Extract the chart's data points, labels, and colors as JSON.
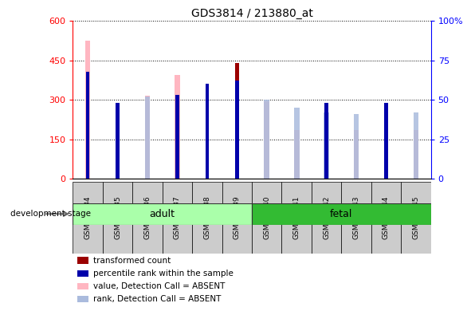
{
  "title": "GDS3814 / 213880_at",
  "samples": [
    "GSM440234",
    "GSM440235",
    "GSM440236",
    "GSM440237",
    "GSM440238",
    "GSM440239",
    "GSM440240",
    "GSM440241",
    "GSM440242",
    "GSM440243",
    "GSM440244",
    "GSM440245"
  ],
  "transformed_count": [
    0,
    270,
    0,
    0,
    315,
    440,
    0,
    0,
    195,
    0,
    195,
    0
  ],
  "percentile_rank": [
    68,
    48,
    0,
    53,
    60,
    62,
    0,
    0,
    48,
    0,
    48,
    0
  ],
  "value_absent": [
    525,
    0,
    315,
    395,
    0,
    0,
    295,
    185,
    0,
    185,
    0,
    185
  ],
  "rank_absent": [
    0,
    0,
    52,
    0,
    0,
    0,
    50,
    45,
    42,
    41,
    0,
    42
  ],
  "ylim_left": [
    0,
    600
  ],
  "ylim_right": [
    0,
    100
  ],
  "yticks_left": [
    0,
    150,
    300,
    450,
    600
  ],
  "yticks_right": [
    0,
    25,
    50,
    75,
    100
  ],
  "color_transformed": "#9B0000",
  "color_percentile": "#0000AA",
  "color_value_absent": "#FFB6C1",
  "color_rank_absent": "#AABBDD",
  "adult_color_light": "#AAFFAA",
  "adult_color_dark": "#44CC44",
  "fetal_color": "#33BB33",
  "adult_n": 6,
  "fetal_n": 6
}
